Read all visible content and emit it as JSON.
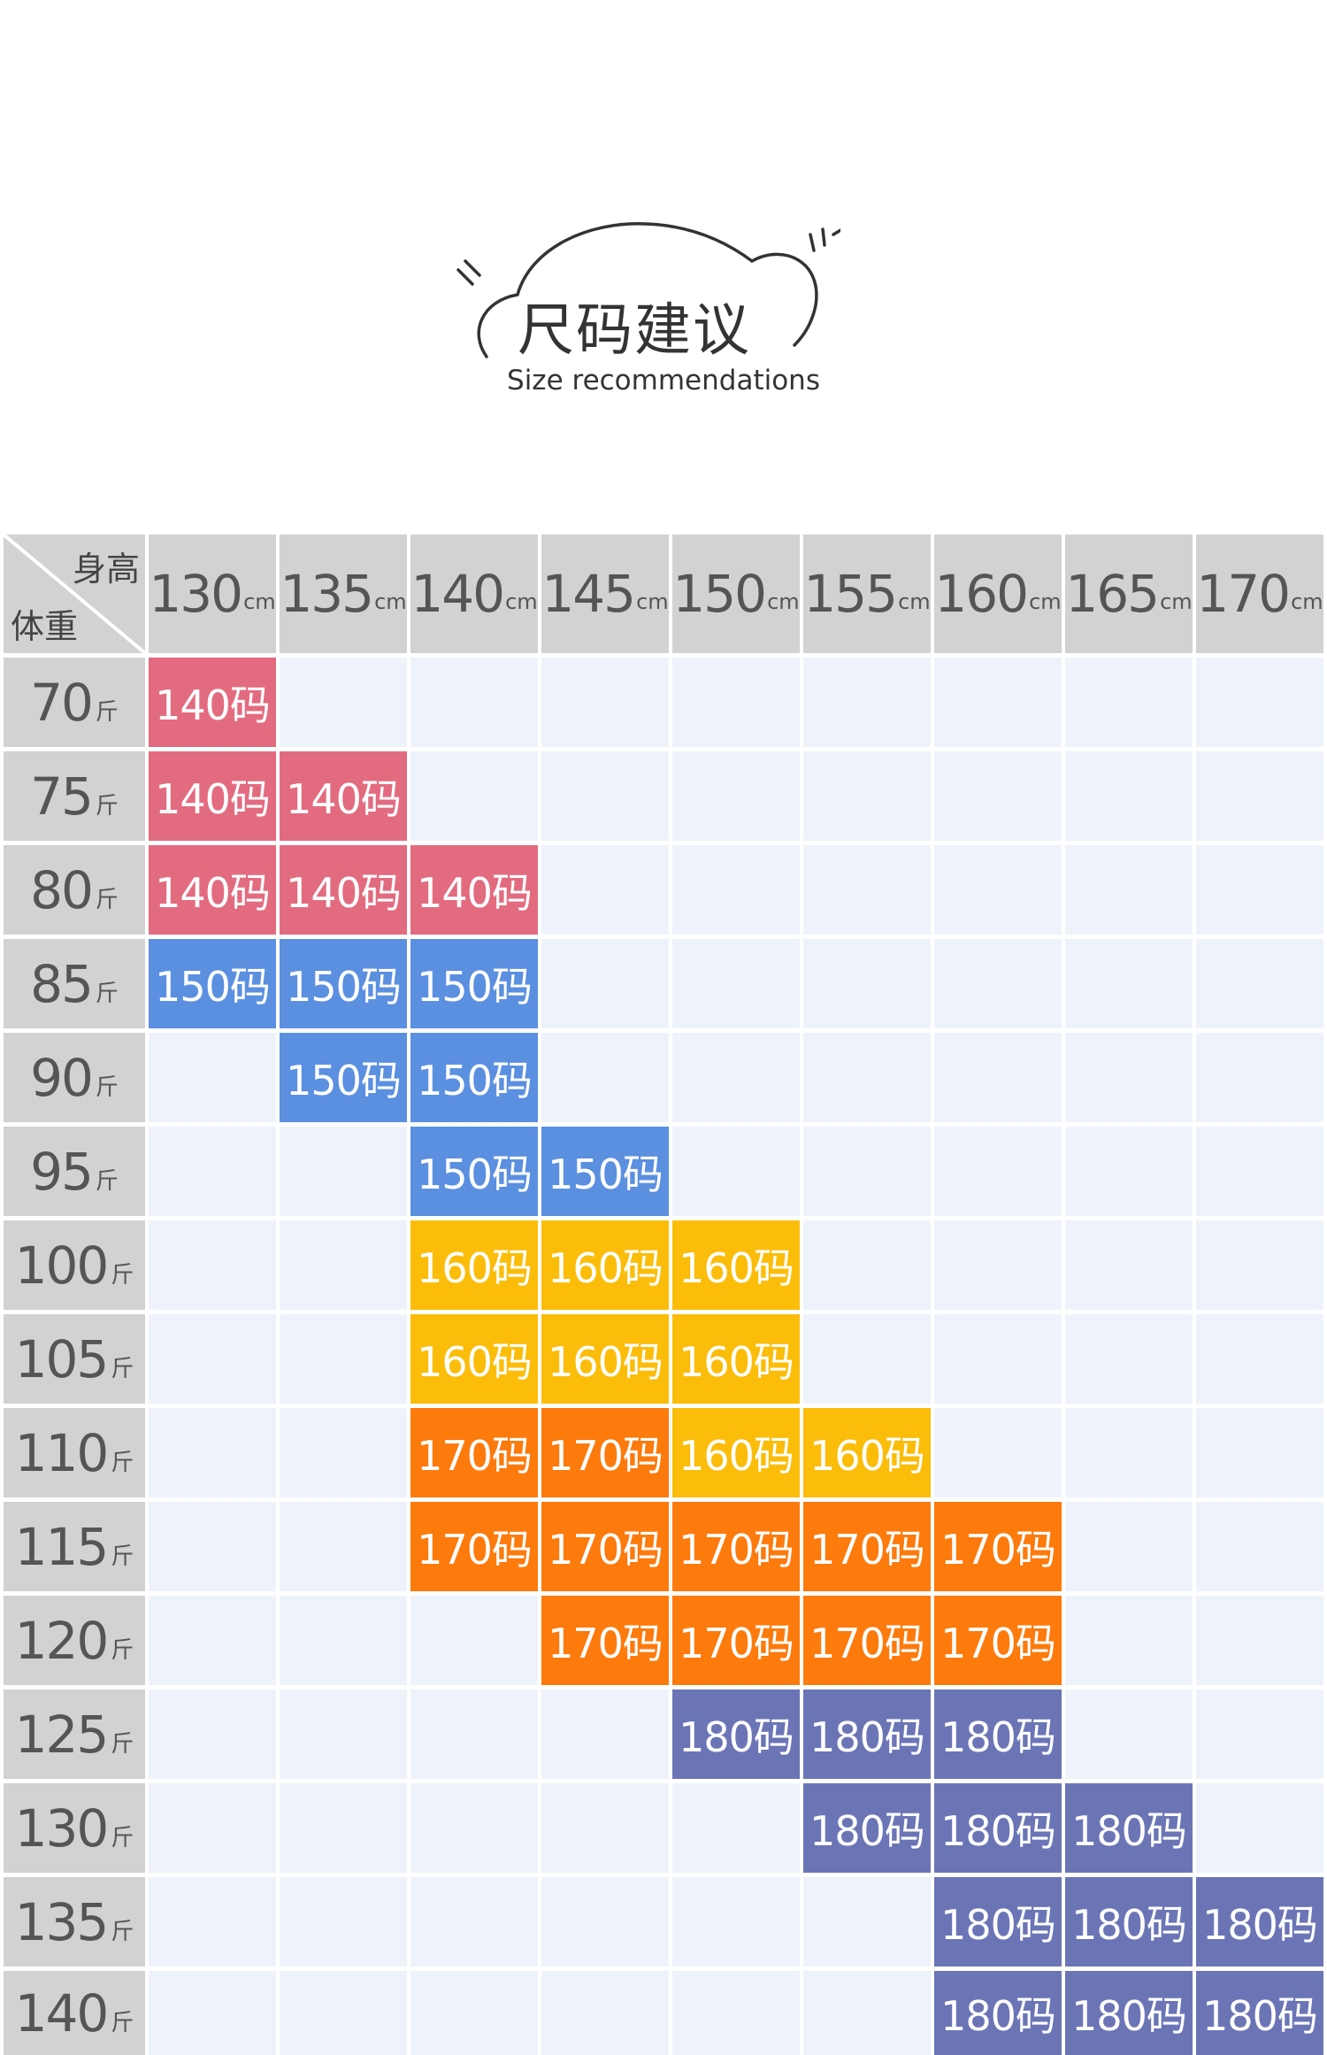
{
  "title": {
    "zh": "尺码建议",
    "en": "Size recommendations"
  },
  "corner": {
    "height_label": "身高",
    "weight_label": "体重"
  },
  "units": {
    "height": "cm",
    "weight": "斤"
  },
  "heights": [
    "130",
    "135",
    "140",
    "145",
    "150",
    "155",
    "160",
    "165",
    "170"
  ],
  "weights": [
    "70",
    "75",
    "80",
    "85",
    "90",
    "95",
    "100",
    "105",
    "110",
    "115",
    "120",
    "125",
    "130",
    "135",
    "140"
  ],
  "size_colors": {
    "140码": "#e36b80",
    "150码": "#5b8fe0",
    "160码": "#fbbd0a",
    "170码": "#fd7a0c",
    "180码": "#6b75b6"
  },
  "empty_color": "#eef3fb",
  "header_color": "#d2d2d2",
  "table": [
    [
      "140码",
      "",
      "",
      "",
      "",
      "",
      "",
      "",
      ""
    ],
    [
      "140码",
      "140码",
      "",
      "",
      "",
      "",
      "",
      "",
      ""
    ],
    [
      "140码",
      "140码",
      "140码",
      "",
      "",
      "",
      "",
      "",
      ""
    ],
    [
      "150码",
      "150码",
      "150码",
      "",
      "",
      "",
      "",
      "",
      ""
    ],
    [
      "",
      "150码",
      "150码",
      "",
      "",
      "",
      "",
      "",
      ""
    ],
    [
      "",
      "",
      "150码",
      "150码",
      "",
      "",
      "",
      "",
      ""
    ],
    [
      "",
      "",
      "160码",
      "160码",
      "160码",
      "",
      "",
      "",
      ""
    ],
    [
      "",
      "",
      "160码",
      "160码",
      "160码",
      "",
      "",
      "",
      ""
    ],
    [
      "",
      "",
      "170码",
      "170码",
      "160码",
      "160码",
      "",
      "",
      ""
    ],
    [
      "",
      "",
      "170码",
      "170码",
      "170码",
      "170码",
      "170码",
      "",
      ""
    ],
    [
      "",
      "",
      "",
      "170码",
      "170码",
      "170码",
      "170码",
      "",
      ""
    ],
    [
      "",
      "",
      "",
      "",
      "180码",
      "180码",
      "180码",
      "",
      ""
    ],
    [
      "",
      "",
      "",
      "",
      "",
      "180码",
      "180码",
      "180码",
      ""
    ],
    [
      "",
      "",
      "",
      "",
      "",
      "",
      "180码",
      "180码",
      "180码"
    ],
    [
      "",
      "",
      "",
      "",
      "",
      "",
      "180码",
      "180码",
      "180码"
    ]
  ]
}
